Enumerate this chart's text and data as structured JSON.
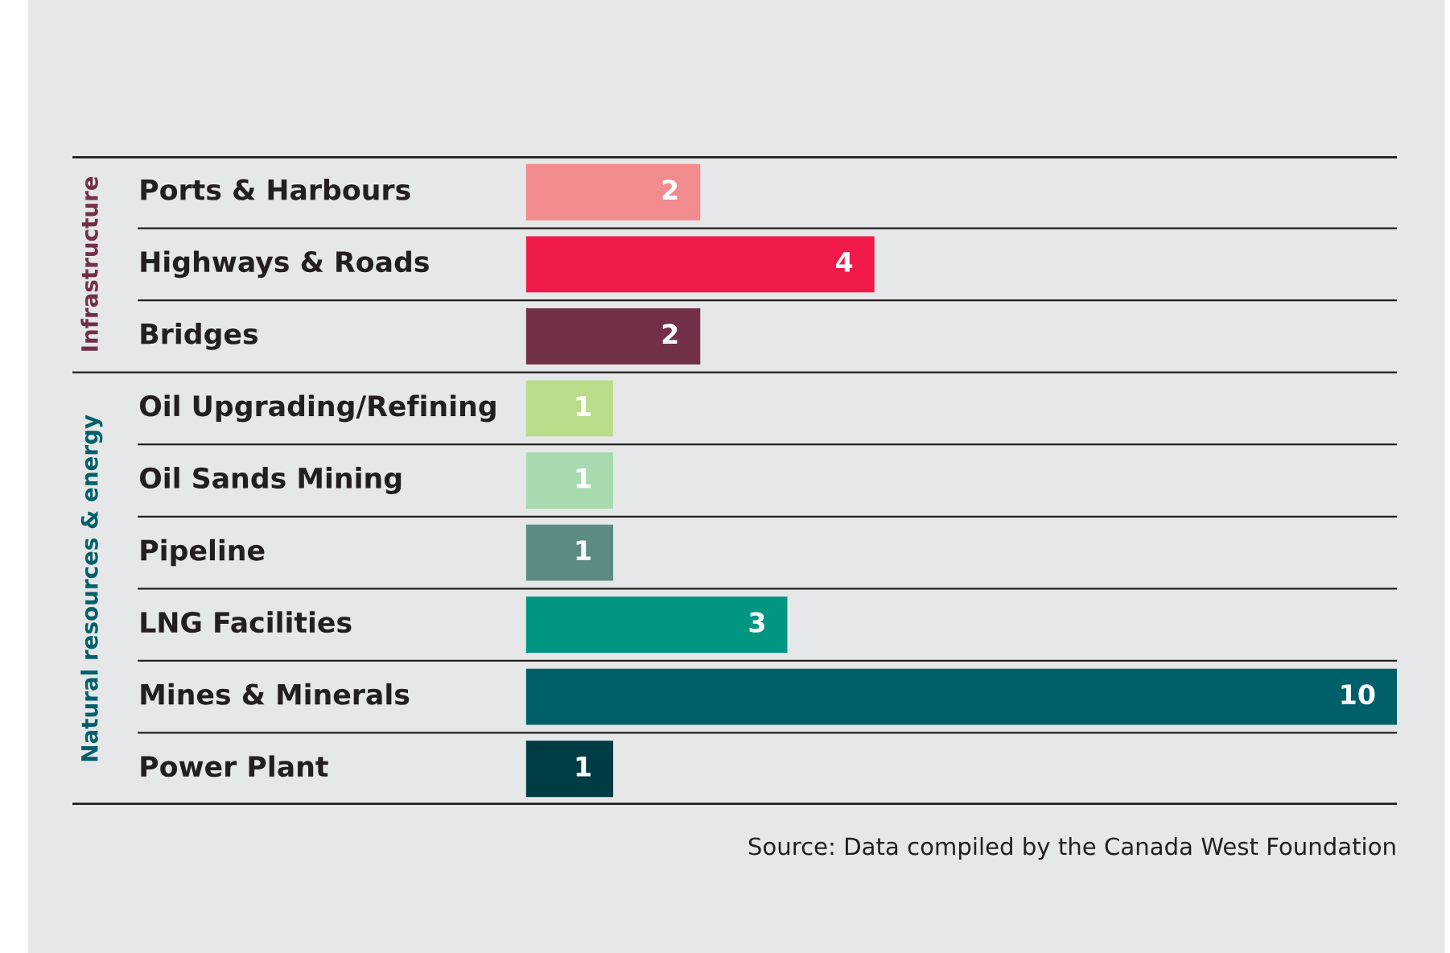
{
  "chart_data": {
    "type": "bar",
    "orientation": "horizontal",
    "categories": [
      "Ports & Harbours",
      "Highways & Roads",
      "Bridges",
      "Oil Upgrading/Refining",
      "Oil Sands Mining",
      "Pipeline",
      "LNG Facilities",
      "Mines & Minerals",
      "Power Plant"
    ],
    "values": [
      2,
      4,
      2,
      1,
      1,
      1,
      3,
      10,
      1
    ],
    "colors": [
      "#f28b8e",
      "#ef1a4a",
      "#722f4a",
      "#b9dc8a",
      "#a8dab0",
      "#5b8b82",
      "#009682",
      "#00606a",
      "#003c44"
    ],
    "data_labels": true,
    "annotations": [
      "Infrastructure",
      "Natural resources & energy",
      "Source: Data compiled by the Canada West Foundation"
    ]
  }
}
